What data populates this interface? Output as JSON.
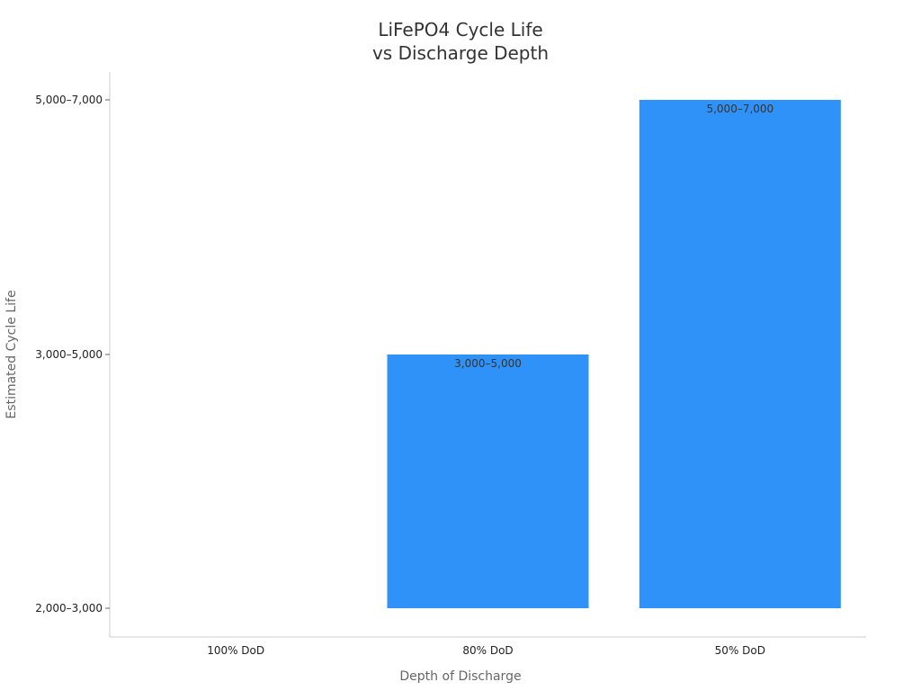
{
  "chart_data": {
    "type": "bar",
    "title_lines": [
      "LiFePO4 Cycle Life",
      "vs Discharge Depth"
    ],
    "xlabel": "Depth of Discharge",
    "ylabel": "Estimated Cycle Life",
    "categories": [
      "100% DoD",
      "80% DoD",
      "50% DoD"
    ],
    "y_tick_labels": [
      "2,000–3,000",
      "3,000–5,000",
      "5,000–7,000"
    ],
    "values": [
      0,
      1,
      2
    ],
    "data_labels": [
      "",
      "3,000–5,000",
      "5,000–7,000"
    ],
    "bar_color": "#2f92f8",
    "grid": false
  }
}
